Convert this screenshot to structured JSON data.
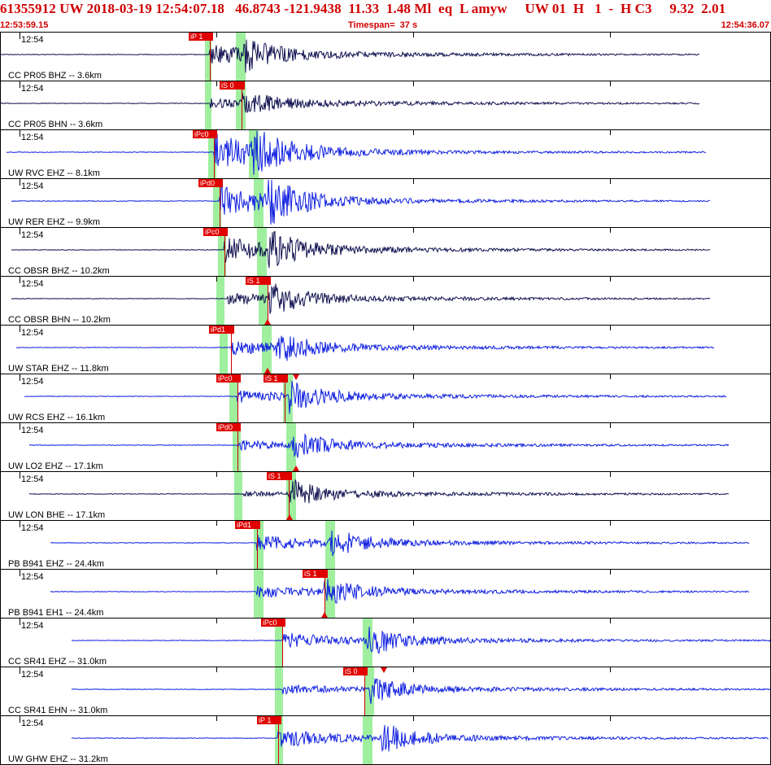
{
  "header": {
    "line1": "61355912 UW 2018-03-19 12:54:07.18   46.8743 -121.9438  11.33  1.48 Ml  eq  L amyw     UW 01  H   1  -  H C3     9.32  2.01",
    "start_time": "12:53:59.15",
    "timespan": "Timespan=  37 s",
    "end_time": "12:54:36.07"
  },
  "colors": {
    "header_text": "#d00000",
    "pick": "#e00000",
    "phase_window": "#9fef9f",
    "trace_blue": "#1020e0",
    "trace_navy": "#101050"
  },
  "panels": [
    {
      "time_label": "12:54",
      "station": "CC PR05 BHZ -- 3.6km",
      "trace_color": "#101050",
      "picks": [
        {
          "label": "iP 1"
        }
      ],
      "markers": ""
    },
    {
      "time_label": "12:54",
      "station": "CC PR05 BHN -- 3.6km",
      "trace_color": "#101050",
      "picks": [
        {
          "label": "iS 0"
        }
      ],
      "markers": ""
    },
    {
      "time_label": "12:54",
      "station": "UW RVC EHZ -- 8.1km",
      "trace_color": "#1020e0",
      "picks": [
        {
          "label": "iPc0"
        }
      ],
      "markers": ""
    },
    {
      "time_label": "12:54",
      "station": "UW RER EHZ -- 9.9km",
      "trace_color": "#1020e0",
      "picks": [
        {
          "label": "iPd0"
        }
      ],
      "markers": ""
    },
    {
      "time_label": "12:54",
      "station": "CC OBSR BHZ -- 10.2km",
      "trace_color": "#101050",
      "picks": [
        {
          "label": "iPc0"
        }
      ],
      "markers": ""
    },
    {
      "time_label": "12:54",
      "station": "CC OBSR BHN -- 10.2km",
      "trace_color": "#101050",
      "picks": [
        {
          "label": "iS 1"
        }
      ],
      "markers": "bottom"
    },
    {
      "time_label": "12:54",
      "station": "UW STAR EHZ -- 11.8km",
      "trace_color": "#1020e0",
      "picks": [
        {
          "label": "iPd1"
        }
      ],
      "markers": "bottom"
    },
    {
      "time_label": "12:54",
      "station": "UW RCS EHZ -- 16.1km",
      "trace_color": "#1020e0",
      "picks": [
        {
          "label": "iPc0"
        },
        {
          "label": "iS 1"
        }
      ],
      "markers": "top"
    },
    {
      "time_label": "12:54",
      "station": "UW LO2 EHZ -- 17.1km",
      "trace_color": "#1020e0",
      "picks": [
        {
          "label": "iPd0"
        }
      ],
      "markers": "bottom"
    },
    {
      "time_label": "12:54",
      "station": "UW LON BHE -- 17.1km",
      "trace_color": "#101050",
      "picks": [
        {
          "label": "iS 1"
        }
      ],
      "markers": "bottom"
    },
    {
      "time_label": "12:54",
      "station": "PB B941 EHZ -- 24.4km",
      "trace_color": "#1020e0",
      "picks": [
        {
          "label": "iPd1"
        }
      ],
      "markers": ""
    },
    {
      "time_label": "12:54",
      "station": "PB B941 EH1 -- 24.4km",
      "trace_color": "#1020e0",
      "picks": [
        {
          "label": "iS 1"
        }
      ],
      "markers": "bottom"
    },
    {
      "time_label": "12:54",
      "station": "CC SR41 EHZ -- 31.0km",
      "trace_color": "#1020e0",
      "picks": [
        {
          "label": "iPc0"
        }
      ],
      "markers": ""
    },
    {
      "time_label": "12:54",
      "station": "CC SR41 EHN -- 31.0km",
      "trace_color": "#1020e0",
      "picks": [
        {
          "label": "iS 0"
        }
      ],
      "markers": "top"
    },
    {
      "time_label": "12:54",
      "station": "UW GHW EHZ -- 31.2km",
      "trace_color": "#1020e0",
      "picks": [
        {
          "label": "iP 1"
        }
      ],
      "markers": ""
    }
  ]
}
